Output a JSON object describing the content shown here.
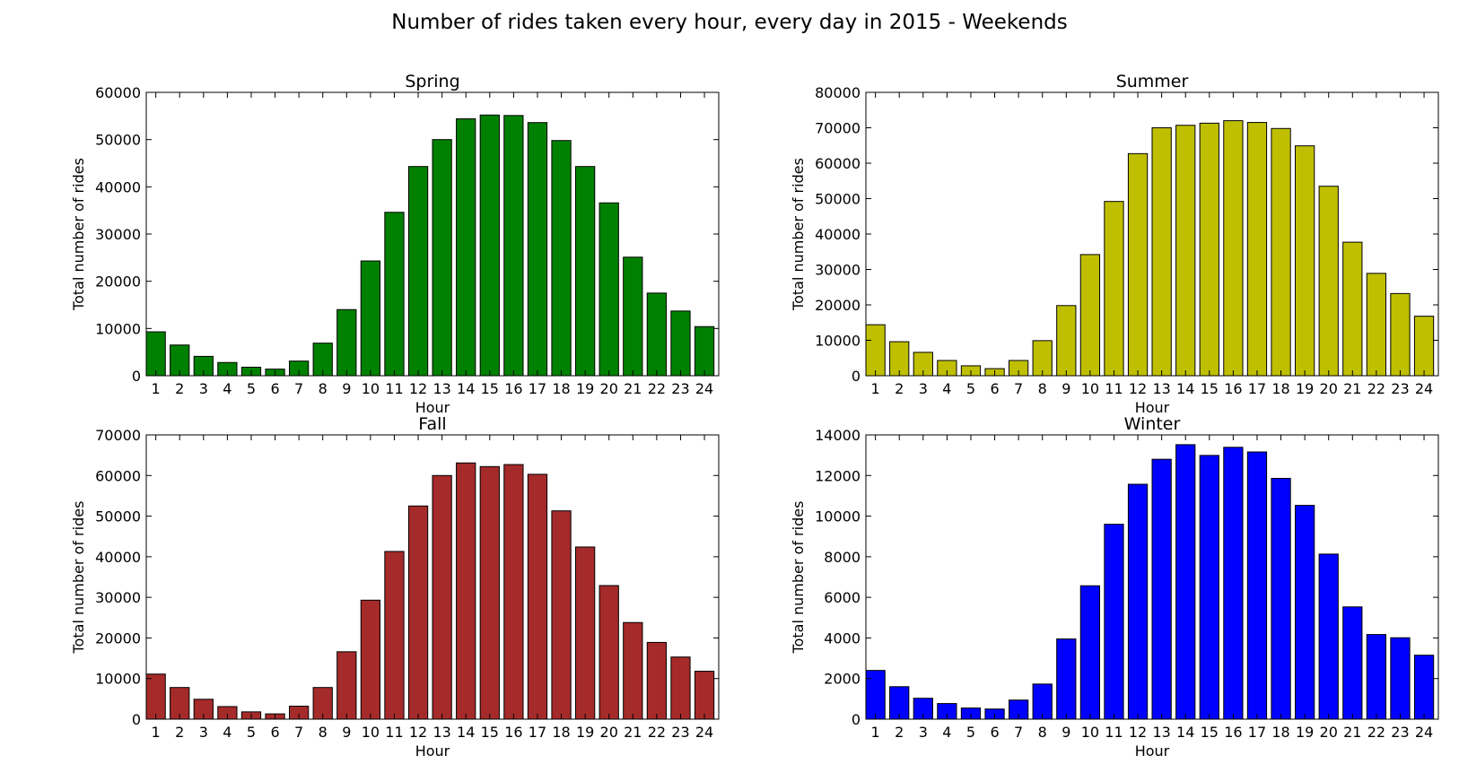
{
  "figure": {
    "title": "Number of rides taken every hour, every day in 2015 - Weekends"
  },
  "chart_data": [
    {
      "type": "bar",
      "title": "Spring",
      "xlabel": "Hour",
      "ylabel": "Total number of rides",
      "color": "#008000",
      "categories": [
        "1",
        "2",
        "3",
        "4",
        "5",
        "6",
        "7",
        "8",
        "9",
        "10",
        "11",
        "12",
        "13",
        "14",
        "15",
        "16",
        "17",
        "18",
        "19",
        "20",
        "21",
        "22",
        "23",
        "24"
      ],
      "values": [
        9300,
        6500,
        4100,
        2800,
        1800,
        1400,
        3100,
        6900,
        14000,
        24300,
        34600,
        44300,
        50000,
        54400,
        55200,
        55100,
        53600,
        49800,
        44300,
        36600,
        25100,
        17500,
        13700,
        10400
      ],
      "ylim": [
        0,
        60000
      ],
      "yticks": [
        0,
        10000,
        20000,
        30000,
        40000,
        50000,
        60000
      ],
      "grid": false
    },
    {
      "type": "bar",
      "title": "Summer",
      "xlabel": "Hour",
      "ylabel": "Total number of rides",
      "color": "#bfbf00",
      "categories": [
        "1",
        "2",
        "3",
        "4",
        "5",
        "6",
        "7",
        "8",
        "9",
        "10",
        "11",
        "12",
        "13",
        "14",
        "15",
        "16",
        "17",
        "18",
        "19",
        "20",
        "21",
        "22",
        "23",
        "24"
      ],
      "values": [
        14400,
        9600,
        6600,
        4300,
        2800,
        2000,
        4300,
        9900,
        19800,
        34200,
        49200,
        62700,
        70000,
        70700,
        71300,
        72000,
        71500,
        69800,
        64900,
        53500,
        37700,
        28900,
        23200,
        16800
      ],
      "ylim": [
        0,
        80000
      ],
      "yticks": [
        0,
        10000,
        20000,
        30000,
        40000,
        50000,
        60000,
        70000,
        80000
      ],
      "grid": false
    },
    {
      "type": "bar",
      "title": "Fall",
      "xlabel": "Hour",
      "ylabel": "Total number of rides",
      "color": "#a52a2a",
      "categories": [
        "1",
        "2",
        "3",
        "4",
        "5",
        "6",
        "7",
        "8",
        "9",
        "10",
        "11",
        "12",
        "13",
        "14",
        "15",
        "16",
        "17",
        "18",
        "19",
        "20",
        "21",
        "22",
        "23",
        "24"
      ],
      "values": [
        11100,
        7800,
        4900,
        3100,
        1800,
        1300,
        3200,
        7800,
        16600,
        29300,
        41300,
        52500,
        60000,
        63100,
        62200,
        62700,
        60300,
        51300,
        42400,
        32900,
        23800,
        18900,
        15300,
        11800
      ],
      "ylim": [
        0,
        70000
      ],
      "yticks": [
        0,
        10000,
        20000,
        30000,
        40000,
        50000,
        60000,
        70000
      ],
      "grid": false
    },
    {
      "type": "bar",
      "title": "Winter",
      "xlabel": "Hour",
      "ylabel": "Total number of rides",
      "color": "#0000ff",
      "categories": [
        "1",
        "2",
        "3",
        "4",
        "5",
        "6",
        "7",
        "8",
        "9",
        "10",
        "11",
        "12",
        "13",
        "14",
        "15",
        "16",
        "17",
        "18",
        "19",
        "20",
        "21",
        "22",
        "23",
        "24"
      ],
      "values": [
        2400,
        1600,
        1030,
        770,
        550,
        500,
        940,
        1730,
        3950,
        6570,
        9600,
        11570,
        12800,
        13520,
        12990,
        13390,
        13160,
        11860,
        10530,
        8130,
        5530,
        4170,
        4010,
        3150
      ],
      "ylim": [
        0,
        14000
      ],
      "yticks": [
        0,
        2000,
        4000,
        6000,
        8000,
        10000,
        12000,
        14000
      ],
      "grid": false
    }
  ]
}
